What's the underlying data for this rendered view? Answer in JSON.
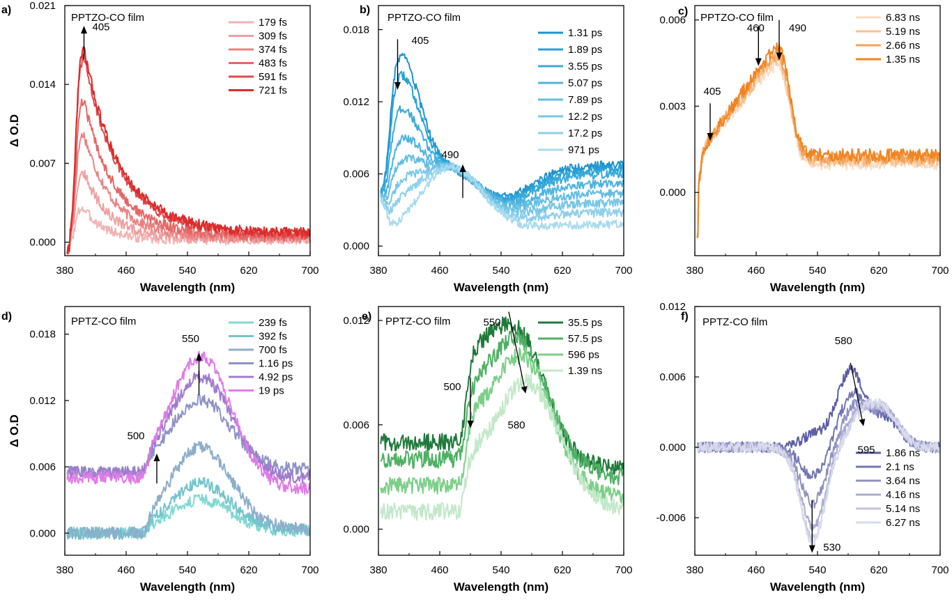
{
  "figure": {
    "ylabel": "Δ O.D",
    "xlabel": "Wavelength (nm)"
  },
  "chart_data": [
    {
      "panel": "a)",
      "type": "line",
      "film": "PPTZO-CO film",
      "xlim": [
        380,
        700
      ],
      "ylim": [
        -0.0012,
        0.021
      ],
      "xticks": [
        380,
        460,
        540,
        620,
        700
      ],
      "xtick_labels": [
        "380",
        "460",
        "540",
        "620",
        "700"
      ],
      "yticks": [
        0,
        0.007,
        0.014,
        0.021
      ],
      "ytick_labels": [
        "0.000",
        "0.007",
        "0.014",
        "0.021"
      ],
      "xlabel": "Wavelength (nm)",
      "ylabel": "Δ O.D",
      "legend_position": "top-right",
      "series": [
        {
          "name": "179 fs",
          "color": "#f2b3b3",
          "peak_x": 402,
          "peak": 0.0032,
          "base": 0.0002
        },
        {
          "name": "309 fs",
          "color": "#ee9f9f",
          "peak_x": 403,
          "peak": 0.0065,
          "base": 0.0003
        },
        {
          "name": "374 fs",
          "color": "#e98383",
          "peak_x": 404,
          "peak": 0.0098,
          "base": 0.0004
        },
        {
          "name": "483 fs",
          "color": "#e46767",
          "peak_x": 404,
          "peak": 0.0128,
          "base": 0.0005
        },
        {
          "name": "591 fs",
          "color": "#e04848",
          "peak_x": 405,
          "peak": 0.0165,
          "base": 0.0007
        },
        {
          "name": "721 fs",
          "color": "#dc2a2a",
          "peak_x": 405,
          "peak": 0.0172,
          "base": 0.0008
        }
      ],
      "annotations": [
        {
          "text": "405",
          "x": 405,
          "dir": "up",
          "arrow_from": 0.0162,
          "arrow_to": 0.0192
        }
      ]
    },
    {
      "panel": "b)",
      "type": "line",
      "film": "PPTZO-CO film",
      "xlim": [
        380,
        700
      ],
      "ylim": [
        -0.0008,
        0.02
      ],
      "xticks": [
        380,
        460,
        540,
        620,
        700
      ],
      "xtick_labels": [
        "380",
        "460",
        "540",
        "620",
        "700"
      ],
      "yticks": [
        0,
        0.006,
        0.012,
        0.018
      ],
      "ytick_labels": [
        "0.000",
        "0.006",
        "0.012",
        "0.018"
      ],
      "xlabel": "Wavelength (nm)",
      "legend_position": "top-right",
      "series": [
        {
          "name": "1.31 ps",
          "color": "#1d93cf",
          "peak_x": 405,
          "peak": 0.0168,
          "iso": 0.0052,
          "red": 0.0062
        },
        {
          "name": "1.89 ps",
          "color": "#27a0d6",
          "peak_x": 405,
          "peak": 0.0152,
          "iso": 0.0053,
          "red": 0.0058
        },
        {
          "name": "3.55 ps",
          "color": "#3aaadb",
          "peak_x": 405,
          "peak": 0.0124,
          "iso": 0.0054,
          "red": 0.0054
        },
        {
          "name": "5.07 ps",
          "color": "#4fb3df",
          "peak_x": 406,
          "peak": 0.0098,
          "iso": 0.0055,
          "red": 0.0046
        },
        {
          "name": "7.89 ps",
          "color": "#63bde3",
          "peak_x": 406,
          "peak": 0.008,
          "iso": 0.0056,
          "red": 0.0038
        },
        {
          "name": "12.2 ps",
          "color": "#78c6e7",
          "peak_x": 407,
          "peak": 0.0063,
          "iso": 0.0057,
          "red": 0.003
        },
        {
          "name": "17.2 ps",
          "color": "#8ecfea",
          "peak_x": 408,
          "peak": 0.005,
          "iso": 0.0058,
          "red": 0.0022
        },
        {
          "name": "971 ps",
          "color": "#a8dbef",
          "peak_x": 410,
          "peak": 0.0032,
          "iso": 0.006,
          "red": 0.0012
        }
      ],
      "annotations": [
        {
          "text": "405",
          "x": 405,
          "dir": "down",
          "arrow_from": 0.0172,
          "arrow_to": 0.013
        },
        {
          "text": "490",
          "x": 490,
          "dir": "up",
          "arrow_from": 0.004,
          "arrow_to": 0.0068
        }
      ]
    },
    {
      "panel": "c)",
      "type": "line",
      "film": "PPTZO-CO film",
      "xlim": [
        380,
        700
      ],
      "ylim": [
        -0.0022,
        0.0065
      ],
      "xticks": [
        380,
        460,
        540,
        620,
        700
      ],
      "xtick_labels": [
        "380",
        "460",
        "540",
        "620",
        "700"
      ],
      "yticks": [
        0,
        0.003,
        0.006
      ],
      "ytick_labels": [
        "0.000",
        "0.003",
        "0.006"
      ],
      "xlabel": "Wavelength (nm)",
      "legend_position": "top-right",
      "series": [
        {
          "name": "6.83 ns",
          "color": "#f9dcc0",
          "peak": 0.005,
          "tail": 0.001
        },
        {
          "name": "5.19 ns",
          "color": "#f6c18f",
          "peak": 0.0052,
          "tail": 0.0011
        },
        {
          "name": "2.66 ns",
          "color": "#f4a259",
          "peak": 0.0054,
          "tail": 0.0012
        },
        {
          "name": "1.35 ns",
          "color": "#f08420",
          "peak": 0.0056,
          "tail": 0.0013
        }
      ],
      "annotations": [
        {
          "text": "405",
          "x": 400,
          "dir": "down",
          "arrow_from": 0.0031,
          "arrow_to": 0.0018
        },
        {
          "text": "460",
          "x": 463,
          "dir": "down",
          "arrow_from": 0.0058,
          "arrow_to": 0.0044
        },
        {
          "text": "490",
          "x": 490,
          "dir": "down",
          "arrow_from": 0.006,
          "arrow_to": 0.0046
        }
      ]
    },
    {
      "panel": "d)",
      "type": "line",
      "film": "PPTZ-CO film",
      "xlim": [
        380,
        700
      ],
      "ylim": [
        -0.002,
        0.0205
      ],
      "xticks": [
        380,
        460,
        540,
        620,
        700
      ],
      "xtick_labels": [
        "380",
        "460",
        "540",
        "620",
        "700"
      ],
      "yticks": [
        0,
        0.006,
        0.012,
        0.018
      ],
      "ytick_labels": [
        "0.000",
        "0.006",
        "0.012",
        "0.018"
      ],
      "xlabel": "Wavelength (nm)",
      "ylabel": "Δ O.D",
      "legend_position": "top-right",
      "series": [
        {
          "name": "239 fs",
          "color": "#7fd8d2",
          "base": 0.0,
          "peak": 0.003,
          "red": 0.0002
        },
        {
          "name": "392 fs",
          "color": "#74c4cc",
          "base": 0.0,
          "peak": 0.0045,
          "red": 0.0003
        },
        {
          "name": "700 fs",
          "color": "#8caecb",
          "base": 0.0,
          "peak": 0.0078,
          "red": 0.0004
        },
        {
          "name": "1.16 ps",
          "color": "#8e93c8",
          "base": 0.0055,
          "peak": 0.012,
          "red": 0.0058
        },
        {
          "name": "4.92 ps",
          "color": "#a07ccd",
          "base": 0.0055,
          "peak": 0.0142,
          "red": 0.005
        },
        {
          "name": "19 ps",
          "color": "#e07be8",
          "base": 0.005,
          "peak": 0.016,
          "red": 0.004
        }
      ],
      "annotations": [
        {
          "text": "500",
          "x": 500,
          "dir": "up",
          "arrow_from": 0.0045,
          "arrow_to": 0.0072
        },
        {
          "text": "550",
          "x": 555,
          "dir": "up",
          "arrow_from": 0.0125,
          "arrow_to": 0.0163
        }
      ]
    },
    {
      "panel": "e)",
      "type": "line",
      "film": "PPTZ-CO film",
      "xlim": [
        380,
        700
      ],
      "ylim": [
        -0.0015,
        0.0128
      ],
      "xticks": [
        380,
        460,
        540,
        620,
        700
      ],
      "xtick_labels": [
        "380",
        "460",
        "540",
        "620",
        "700"
      ],
      "yticks": [
        0,
        0.006,
        0.012
      ],
      "ytick_labels": [
        "0.000",
        "0.006",
        "0.012"
      ],
      "xlabel": "Wavelength (nm)",
      "legend_position": "top-right",
      "series": [
        {
          "name": "35.5 ps",
          "color": "#1f7a3a",
          "base": 0.005,
          "shoulder": 0.0085,
          "peak_x": 553,
          "peak": 0.0118,
          "red": 0.0035
        },
        {
          "name": "57.5 ps",
          "color": "#4fb064",
          "base": 0.004,
          "shoulder": 0.007,
          "peak_x": 560,
          "peak": 0.011,
          "red": 0.003
        },
        {
          "name": "596 ps",
          "color": "#7ccf88",
          "base": 0.0025,
          "shoulder": 0.0058,
          "peak_x": 565,
          "peak": 0.01,
          "red": 0.0018
        },
        {
          "name": "1.39 ns",
          "color": "#c2e8c8",
          "base": 0.001,
          "shoulder": 0.0042,
          "peak_x": 572,
          "peak": 0.0085,
          "red": 0.0012
        }
      ],
      "annotations": [
        {
          "text": "500",
          "x": 500,
          "dir": "down",
          "arrow_from": 0.0087,
          "arrow_to": 0.0058
        },
        {
          "text": "550",
          "x": 550,
          "dir": "diag",
          "arrow_from": 0.0125,
          "arrow_to": 0.0078,
          "x2": 572
        },
        {
          "text": "580",
          "x": 580,
          "dir": "none"
        }
      ]
    },
    {
      "panel": "f)",
      "type": "line",
      "film": "PPTZ-CO film",
      "xlim": [
        380,
        700
      ],
      "ylim": [
        -0.0092,
        0.012
      ],
      "xticks": [
        380,
        460,
        540,
        620,
        700
      ],
      "xtick_labels": [
        "380",
        "460",
        "540",
        "620",
        "700"
      ],
      "yticks": [
        -0.006,
        0,
        0.006,
        0.012
      ],
      "ytick_labels": [
        "-0.006",
        "0.000",
        "0.006",
        "0.012"
      ],
      "xlabel": "Wavelength (nm)",
      "legend_position": "bottom-right",
      "series": [
        {
          "name": "1.86 ns",
          "color": "#5a5ea4",
          "dip": 0.001,
          "peak_x": 583,
          "peak": 0.0065
        },
        {
          "name": "2.1 ns",
          "color": "#7376b2",
          "dip": -0.0025,
          "peak_x": 586,
          "peak": 0.0045
        },
        {
          "name": "3.64 ns",
          "color": "#8f91c2",
          "dip": -0.0048,
          "peak_x": 590,
          "peak": 0.0035
        },
        {
          "name": "4.16 ns",
          "color": "#a9abd2",
          "dip": -0.0068,
          "peak_x": 595,
          "peak": 0.003
        },
        {
          "name": "5.14 ns",
          "color": "#c3c4e0",
          "dip": -0.0078,
          "peak_x": 598,
          "peak": 0.0028
        },
        {
          "name": "6.27 ns",
          "color": "#d9daec",
          "dip": -0.008,
          "peak_x": 600,
          "peak": 0.0027
        }
      ],
      "annotations": [
        {
          "text": "580",
          "x": 583,
          "dir": "diag",
          "arrow_from": 0.0072,
          "arrow_to": 0.0018,
          "x2": 600
        },
        {
          "text": "595",
          "x": 600,
          "dir": "none"
        },
        {
          "text": "530",
          "x": 533,
          "dir": "down",
          "arrow_from": -0.0045,
          "arrow_to": -0.009
        }
      ]
    }
  ]
}
